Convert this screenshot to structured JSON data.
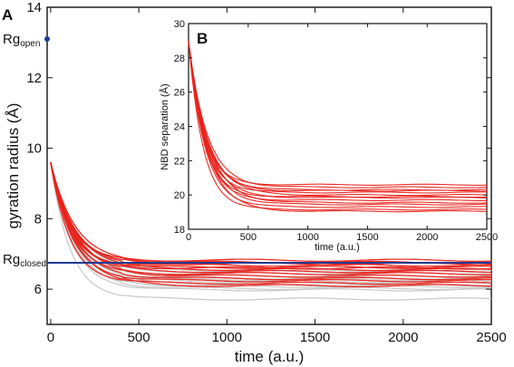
{
  "chart_data": [
    {
      "panel": "A",
      "type": "line",
      "xlabel": "time (a.u.)",
      "ylabel": "gyration radius (Å)",
      "xlim": [
        -20,
        2500
      ],
      "ylim": [
        5.0,
        14.0
      ],
      "xticks": [
        0,
        500,
        1000,
        1500,
        2000,
        2500
      ],
      "yticks": [
        6,
        8,
        10,
        12,
        14
      ],
      "start_value": 9.6,
      "decay_time": 130,
      "reference_lines": [
        {
          "label": "Rg",
          "subscript": "open",
          "value": 13.1,
          "marker": true,
          "color": "#1f3a93"
        },
        {
          "label": "Rg",
          "subscript": "closed",
          "value": 6.75,
          "line": true,
          "color": "#1f3a93"
        }
      ],
      "series_groups": [
        {
          "color": "#c8c8c8",
          "plateaus": [
            6.45,
            6.38,
            6.32,
            6.28,
            6.22,
            6.18,
            6.12,
            6.08,
            6.02,
            5.98,
            5.72,
            6.55,
            6.5
          ]
        },
        {
          "color": "#e8231b",
          "plateaus": [
            6.82,
            6.76,
            6.68,
            6.62,
            6.56,
            6.5,
            6.44,
            6.37,
            6.3,
            6.24,
            6.17,
            6.1,
            6.72,
            6.6
          ]
        }
      ],
      "colors": {
        "axis": "#111111",
        "reference": "#1f3a93"
      }
    },
    {
      "panel": "B",
      "type": "line",
      "xlabel": "time (a.u.)",
      "ylabel": "NBD separation (Å)",
      "xlim": [
        0,
        2500
      ],
      "ylim": [
        18,
        30
      ],
      "xticks": [
        0,
        500,
        1000,
        1500,
        2000,
        2500
      ],
      "yticks": [
        18,
        20,
        22,
        24,
        26,
        28,
        30
      ],
      "start_value": 29.0,
      "decay_time": 145,
      "series_groups": [
        {
          "color": "#e8231b",
          "plateaus": [
            20.6,
            20.45,
            20.3,
            20.15,
            20.0,
            19.85,
            19.7,
            19.55,
            19.45,
            19.3,
            19.15,
            19.05,
            20.25,
            19.9
          ]
        }
      ],
      "colors": {
        "axis": "#111111"
      }
    }
  ]
}
